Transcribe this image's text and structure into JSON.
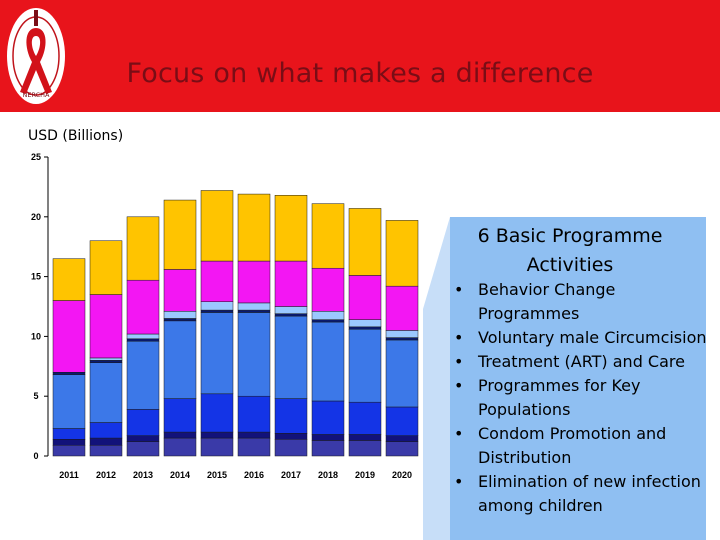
{
  "header": {
    "title": "Focus on what makes a difference",
    "logo_text": "NERCHA",
    "color": "#e8141b"
  },
  "chart_data": {
    "type": "bar",
    "stacked": true,
    "ylabel": "USD (Billions)",
    "ylim": [
      0,
      25
    ],
    "yticks": [
      0,
      5,
      10,
      15,
      20,
      25
    ],
    "grid": false,
    "categories": [
      "2011",
      "2012",
      "2013",
      "2014",
      "2015",
      "2016",
      "2017",
      "2018",
      "2019",
      "2020"
    ],
    "series": [
      {
        "color": "#3a3aa8",
        "values": [
          0.9,
          0.9,
          1.2,
          1.5,
          1.5,
          1.5,
          1.4,
          1.3,
          1.3,
          1.2
        ]
      },
      {
        "color": "#12127a",
        "values": [
          0.5,
          0.6,
          0.5,
          0.5,
          0.5,
          0.5,
          0.5,
          0.5,
          0.5,
          0.5
        ]
      },
      {
        "color": "#1434e6",
        "values": [
          0.9,
          1.3,
          2.2,
          2.8,
          3.2,
          3.0,
          2.9,
          2.8,
          2.7,
          2.4
        ]
      },
      {
        "color": "#3c78e8",
        "values": [
          4.5,
          5.0,
          5.7,
          6.5,
          6.8,
          7.0,
          6.9,
          6.6,
          6.1,
          5.6
        ]
      },
      {
        "color": "#0a1a70",
        "values": [
          0.2,
          0.2,
          0.2,
          0.2,
          0.2,
          0.2,
          0.2,
          0.2,
          0.2,
          0.2
        ]
      },
      {
        "color": "#9bc8ff",
        "values": [
          0.0,
          0.2,
          0.4,
          0.6,
          0.7,
          0.6,
          0.6,
          0.7,
          0.6,
          0.6
        ]
      },
      {
        "color": "#f316f3",
        "values": [
          6.0,
          5.3,
          4.5,
          3.5,
          3.4,
          3.5,
          3.8,
          3.6,
          3.7,
          3.7
        ]
      },
      {
        "color": "#ffc400",
        "values": [
          3.5,
          4.5,
          5.3,
          5.8,
          5.9,
          5.6,
          5.5,
          5.4,
          5.6,
          5.5
        ]
      }
    ]
  },
  "panel": {
    "title": "6 Basic Programme Activities",
    "items": [
      "Behavior Change Programmes",
      "Voluntary male Circumcision",
      "Treatment (ART) and Care",
      "Programmes for Key Populations",
      "Condom Promotion and Distribution",
      "Elimination of new infection among children"
    ],
    "color": "#8fbff2"
  }
}
